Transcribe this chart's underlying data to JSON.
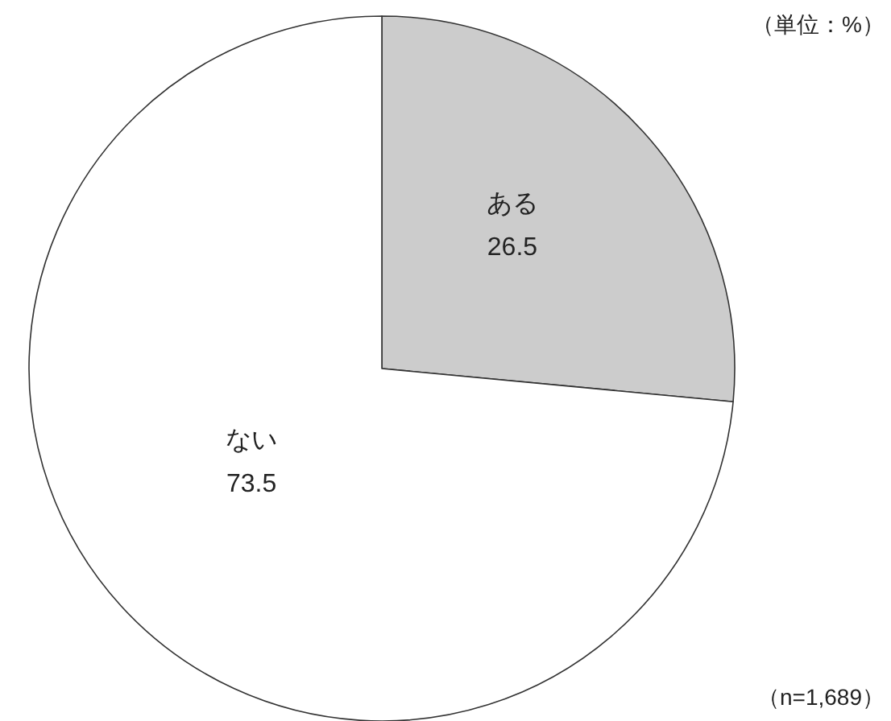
{
  "chart_data": {
    "type": "pie",
    "categories": [
      "ある",
      "ない"
    ],
    "values": [
      26.5,
      73.5
    ],
    "colors": [
      "#cccccc",
      "#ffffff"
    ],
    "data_labels": true,
    "annotations": [
      "（単位：%）",
      "（n=1,689）"
    ]
  }
}
